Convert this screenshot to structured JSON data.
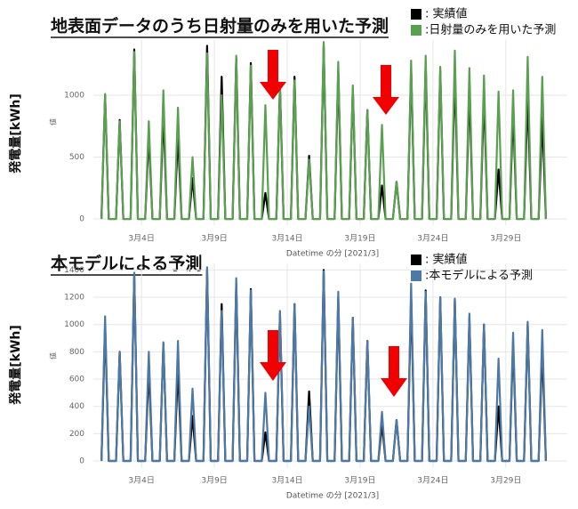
{
  "chart_data": [
    {
      "type": "line",
      "title": "地表面データのうち日射量のみを用いた予測",
      "ylabel": "発電量[kWh]",
      "y_axis_name": "値",
      "xlabel": "Datetime の分 [2021/3]",
      "legend": "top-right",
      "x": [
        1.25,
        1.5,
        1.75,
        2.25,
        2.5,
        2.75,
        3.25,
        3.5,
        3.75,
        4.25,
        4.5,
        4.75,
        5.25,
        5.5,
        5.75,
        6.25,
        6.5,
        6.75,
        7.25,
        7.5,
        7.75,
        8.25,
        8.5,
        8.75,
        9.25,
        9.5,
        9.75,
        10.25,
        10.5,
        10.75,
        11.25,
        11.5,
        11.75,
        12.25,
        12.5,
        12.75,
        13.25,
        13.5,
        13.75,
        14.25,
        14.5,
        14.75,
        15.25,
        15.5,
        15.75,
        16.25,
        16.5,
        16.75,
        17.25,
        17.5,
        17.75,
        18.25,
        18.5,
        18.75,
        19.25,
        19.5,
        19.75,
        20.25,
        20.5,
        20.75,
        21.25,
        21.5,
        21.75,
        22.25,
        22.5,
        22.75,
        23.25,
        23.5,
        23.75,
        24.25,
        24.5,
        24.75,
        25.25,
        25.5,
        25.75,
        26.25,
        26.5,
        26.75,
        27.25,
        27.5,
        27.75,
        28.25,
        28.5,
        28.75,
        29.25,
        29.5,
        29.75,
        30.25,
        30.5,
        30.75,
        31.25,
        31.5,
        31.75
      ],
      "xlim": [
        1,
        32
      ],
      "xticks": [
        {
          "value": 4,
          "label": "3月4日"
        },
        {
          "value": 9,
          "label": "3月9日"
        },
        {
          "value": 14,
          "label": "3月14日"
        },
        {
          "value": 19,
          "label": "3月19日"
        },
        {
          "value": 24,
          "label": "3月24日"
        },
        {
          "value": 29,
          "label": "3月29日"
        }
      ],
      "ylim": [
        -50,
        1450
      ],
      "yticks": [
        0,
        500,
        1000
      ],
      "grid": true,
      "series": [
        {
          "name": ": 実績値",
          "color": "#000000",
          "values": [
            0,
            1000,
            0,
            0,
            800,
            0,
            0,
            1370,
            0,
            0,
            680,
            0,
            0,
            860,
            0,
            0,
            680,
            0,
            0,
            330,
            0,
            0,
            1400,
            0,
            0,
            1150,
            0,
            0,
            1300,
            0,
            0,
            1260,
            0,
            0,
            210,
            0,
            0,
            1080,
            0,
            0,
            1150,
            0,
            0,
            510,
            0,
            0,
            1400,
            0,
            0,
            1200,
            0,
            0,
            1050,
            0,
            0,
            880,
            0,
            0,
            270,
            0,
            0,
            300,
            0,
            0,
            1220,
            0,
            0,
            1250,
            0,
            0,
            1200,
            0,
            0,
            1180,
            0,
            0,
            1050,
            0,
            0,
            1000,
            0,
            0,
            400,
            0,
            0,
            870,
            0,
            0,
            1000,
            0,
            0,
            820,
            0
          ]
        },
        {
          "name": ":日射量のみを用いた予測",
          "color": "#5aa050",
          "values": [
            0,
            1010,
            0,
            0,
            790,
            0,
            0,
            1350,
            0,
            0,
            790,
            0,
            0,
            1040,
            0,
            0,
            900,
            0,
            0,
            500,
            0,
            0,
            1340,
            0,
            0,
            1000,
            0,
            0,
            1320,
            0,
            0,
            1240,
            0,
            0,
            920,
            0,
            0,
            1050,
            0,
            0,
            1120,
            0,
            0,
            480,
            0,
            0,
            1430,
            0,
            0,
            1270,
            0,
            0,
            1080,
            0,
            0,
            880,
            0,
            0,
            760,
            0,
            0,
            300,
            0,
            0,
            1280,
            0,
            0,
            1320,
            0,
            0,
            1230,
            0,
            0,
            1360,
            0,
            0,
            1220,
            0,
            0,
            1160,
            0,
            0,
            1030,
            0,
            0,
            1040,
            0,
            0,
            1310,
            0,
            0,
            1150,
            0
          ]
        }
      ]
    },
    {
      "type": "line",
      "title": "本モデルによる予測",
      "ylabel": "発電量[kWh]",
      "y_axis_name": "値",
      "xlabel": "Datetime の分 [2021/3]",
      "legend": "top-right",
      "x": [
        1.25,
        1.5,
        1.75,
        2.25,
        2.5,
        2.75,
        3.25,
        3.5,
        3.75,
        4.25,
        4.5,
        4.75,
        5.25,
        5.5,
        5.75,
        6.25,
        6.5,
        6.75,
        7.25,
        7.5,
        7.75,
        8.25,
        8.5,
        8.75,
        9.25,
        9.5,
        9.75,
        10.25,
        10.5,
        10.75,
        11.25,
        11.5,
        11.75,
        12.25,
        12.5,
        12.75,
        13.25,
        13.5,
        13.75,
        14.25,
        14.5,
        14.75,
        15.25,
        15.5,
        15.75,
        16.25,
        16.5,
        16.75,
        17.25,
        17.5,
        17.75,
        18.25,
        18.5,
        18.75,
        19.25,
        19.5,
        19.75,
        20.25,
        20.5,
        20.75,
        21.25,
        21.5,
        21.75,
        22.25,
        22.5,
        22.75,
        23.25,
        23.5,
        23.75,
        24.25,
        24.5,
        24.75,
        25.25,
        25.5,
        25.75,
        26.25,
        26.5,
        26.75,
        27.25,
        27.5,
        27.75,
        28.25,
        28.5,
        28.75,
        29.25,
        29.5,
        29.75,
        30.25,
        30.5,
        30.75,
        31.25,
        31.5,
        31.75
      ],
      "xlim": [
        1,
        32
      ],
      "xticks": [
        {
          "value": 4,
          "label": "3月4日"
        },
        {
          "value": 9,
          "label": "3月9日"
        },
        {
          "value": 14,
          "label": "3月14日"
        },
        {
          "value": 19,
          "label": "3月19日"
        },
        {
          "value": 24,
          "label": "3月24日"
        },
        {
          "value": 29,
          "label": "3月29日"
        }
      ],
      "ylim": [
        -50,
        1450
      ],
      "yticks": [
        0,
        200,
        400,
        600,
        800,
        1000,
        1200,
        1400
      ],
      "grid": true,
      "series": [
        {
          "name": ": 実績値",
          "color": "#000000",
          "values": [
            0,
            1000,
            0,
            0,
            800,
            0,
            0,
            1370,
            0,
            0,
            680,
            0,
            0,
            860,
            0,
            0,
            680,
            0,
            0,
            330,
            0,
            0,
            1400,
            0,
            0,
            1150,
            0,
            0,
            1300,
            0,
            0,
            1260,
            0,
            0,
            210,
            0,
            0,
            1080,
            0,
            0,
            1150,
            0,
            0,
            510,
            0,
            0,
            1400,
            0,
            0,
            1200,
            0,
            0,
            1050,
            0,
            0,
            880,
            0,
            0,
            270,
            0,
            0,
            300,
            0,
            0,
            1220,
            0,
            0,
            1250,
            0,
            0,
            1200,
            0,
            0,
            1180,
            0,
            0,
            1050,
            0,
            0,
            1000,
            0,
            0,
            400,
            0,
            0,
            870,
            0,
            0,
            1000,
            0,
            0,
            820,
            0
          ]
        },
        {
          "name": ":本モデルによる予測",
          "color": "#4e79a7",
          "values": [
            0,
            1060,
            0,
            0,
            800,
            0,
            0,
            1380,
            0,
            0,
            800,
            0,
            0,
            870,
            0,
            0,
            880,
            0,
            0,
            530,
            0,
            0,
            1420,
            0,
            0,
            1100,
            0,
            0,
            1340,
            0,
            0,
            1250,
            0,
            0,
            500,
            0,
            0,
            1100,
            0,
            0,
            1150,
            0,
            0,
            400,
            0,
            0,
            1390,
            0,
            0,
            1240,
            0,
            0,
            1050,
            0,
            0,
            880,
            0,
            0,
            360,
            0,
            0,
            300,
            0,
            0,
            1300,
            0,
            0,
            1240,
            0,
            0,
            1200,
            0,
            0,
            1190,
            0,
            0,
            1080,
            0,
            0,
            1000,
            0,
            0,
            750,
            0,
            0,
            940,
            0,
            0,
            1020,
            0,
            0,
            960,
            0
          ]
        }
      ]
    }
  ]
}
